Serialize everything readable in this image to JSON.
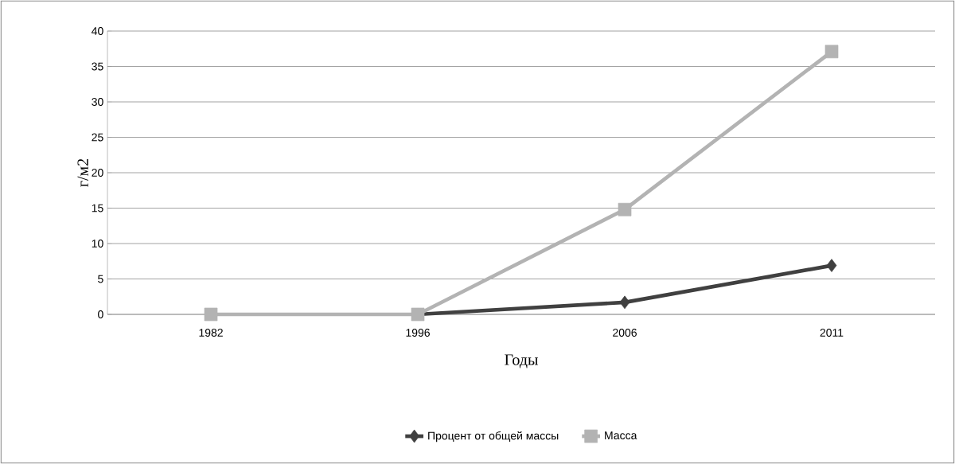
{
  "chart_data": {
    "type": "line",
    "categories": [
      "1982",
      "1996",
      "2006",
      "2011"
    ],
    "series": [
      {
        "name": "Процент от общей массы",
        "color": "#404040",
        "marker": "diamond",
        "values": [
          null,
          0,
          1.7,
          6.9
        ]
      },
      {
        "name": "Масса",
        "color": "#b3b3b3",
        "marker": "square",
        "values": [
          0,
          0,
          14.8,
          37.1
        ]
      }
    ],
    "xlabel": "Годы",
    "ylabel": "г/м2",
    "ylim": [
      0,
      40
    ],
    "yticks": [
      0,
      5,
      10,
      15,
      20,
      25,
      30,
      35,
      40
    ],
    "grid": "y",
    "legend": "bottom",
    "line_style": "solid"
  }
}
